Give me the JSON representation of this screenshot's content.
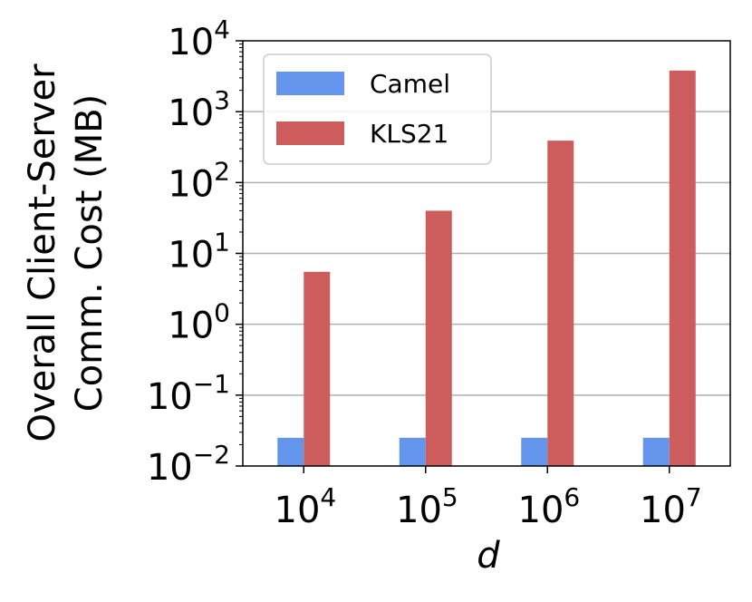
{
  "chart_data": {
    "type": "bar",
    "scale": "log",
    "categories": [
      {
        "base": "10",
        "exp": "4"
      },
      {
        "base": "10",
        "exp": "5"
      },
      {
        "base": "10",
        "exp": "6"
      },
      {
        "base": "10",
        "exp": "7"
      }
    ],
    "series": [
      {
        "name": "Camel",
        "color": "#6495ED",
        "values": [
          0.025,
          0.025,
          0.025,
          0.025
        ]
      },
      {
        "name": "KLS21",
        "color": "#CD5C5C",
        "values": [
          5.5,
          40,
          390,
          3800
        ]
      }
    ],
    "ylabel_line1": "Overall Client-Server",
    "ylabel_line2": "Comm. Cost (MB)",
    "xlabel": "d",
    "ylim": [
      0.01,
      10000
    ],
    "yticks": [
      {
        "base": "10",
        "exp": "4"
      },
      {
        "base": "10",
        "exp": "3"
      },
      {
        "base": "10",
        "exp": "2"
      },
      {
        "base": "10",
        "exp": "1"
      },
      {
        "base": "10",
        "exp": "0"
      },
      {
        "base": "10",
        "exp": "−1"
      },
      {
        "base": "10",
        "exp": "−2"
      }
    ],
    "ytick_values": [
      10000,
      1000,
      100,
      10,
      1,
      0.1,
      0.01
    ],
    "grid": "y-major",
    "legend_position": "top-left"
  }
}
